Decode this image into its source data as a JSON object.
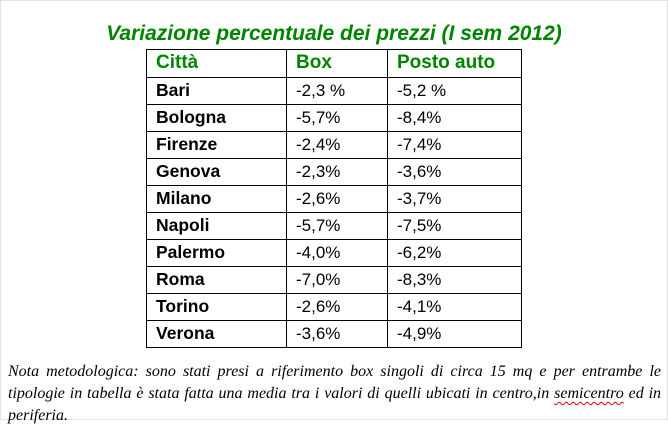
{
  "title": "Variazione percentuale dei prezzi (I sem 2012)",
  "table": {
    "headers": [
      "Città",
      "Box",
      "Posto auto"
    ],
    "rows": [
      {
        "city": "Bari",
        "box": "-2,3 %",
        "posto_auto": "-5,2 %"
      },
      {
        "city": "Bologna",
        "box": "-5,7%",
        "posto_auto": "-8,4%"
      },
      {
        "city": "Firenze",
        "box": "-2,4%",
        "posto_auto": "-7,4%"
      },
      {
        "city": "Genova",
        "box": "-2,3%",
        "posto_auto": "-3,6%"
      },
      {
        "city": "Milano",
        "box": "-2,6%",
        "posto_auto": "-3,7%"
      },
      {
        "city": "Napoli",
        "box": "-5,7%",
        "posto_auto": "-7,5%"
      },
      {
        "city": "Palermo",
        "box": "-4,0%",
        "posto_auto": "-6,2%"
      },
      {
        "city": "Roma",
        "box": "-7,0%",
        "posto_auto": "-8,3%"
      },
      {
        "city": "Torino",
        "box": "-2,6%",
        "posto_auto": "-4,1%"
      },
      {
        "city": "Verona",
        "box": "-3,6%",
        "posto_auto": "-4,9%"
      }
    ]
  },
  "note": {
    "prefix": "Nota metodologica: sono stati presi a riferimento box singoli di circa 15 mq e per entrambe le tipologie in tabella è stata fatta una media tra i valori di quelli ubicati in centro,in ",
    "misspelled_word": "semicentro",
    "suffix": " ed in periferia."
  },
  "colors": {
    "accent_green": "#008400",
    "text_black": "#000000",
    "frame_border": "#e2e2e2",
    "spellcheck_red": "#e00000"
  }
}
